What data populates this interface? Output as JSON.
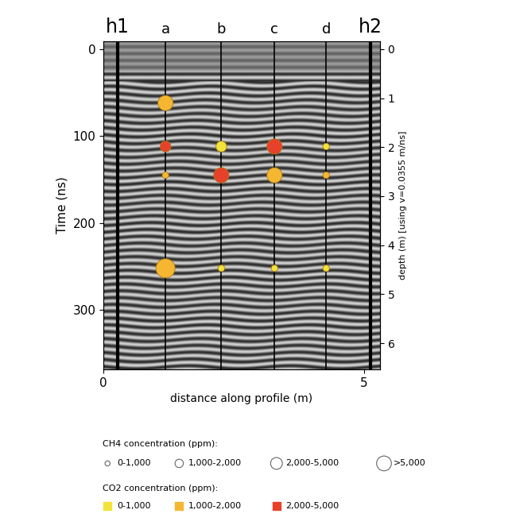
{
  "chart_data": {
    "type": "scatter",
    "xlabel": "distance along profile (m)",
    "ylabel": "Time (ns)",
    "y2label": "depth (m) [using v=0.0355 m/ns]",
    "xlim": [
      0,
      5.3
    ],
    "xticks": [
      0,
      5
    ],
    "ylim": [
      368,
      -9
    ],
    "yticks": [
      0,
      100,
      200,
      300
    ],
    "y2lim": [
      6.53,
      -0.16
    ],
    "y2ticks": [
      0,
      1,
      2,
      3,
      4,
      5,
      6
    ],
    "grid": false,
    "profile_lines": [
      {
        "label": "h1",
        "x": 0.27
      },
      {
        "label": "a",
        "x": 1.19
      },
      {
        "label": "b",
        "x": 2.26
      },
      {
        "label": "c",
        "x": 3.28
      },
      {
        "label": "d",
        "x": 4.27
      },
      {
        "label": "h2",
        "x": 5.12
      }
    ],
    "ch4_legend": {
      "title": "CH4 concentration (ppm):",
      "classes": [
        "0-1,000",
        "1,000-2,000",
        "2,000-5,000",
        ">5,000"
      ]
    },
    "co2_legend": {
      "title": "CO2 concentration (ppm):",
      "classes": [
        "0-1,000",
        "1,000-2,000",
        "2,000-5,000"
      ],
      "colors": [
        "#f2e33a",
        "#f5b731",
        "#e8412b"
      ]
    },
    "points": [
      {
        "x": 1.19,
        "time": 62,
        "ch4": "2,000-5,000",
        "co2": "1,000-2,000"
      },
      {
        "x": 1.19,
        "time": 112,
        "ch4": "1,000-2,000",
        "co2": "2,000-5,000"
      },
      {
        "x": 1.19,
        "time": 145,
        "ch4": "0-1,000",
        "co2": "1,000-2,000"
      },
      {
        "x": 1.19,
        "time": 252,
        "ch4": ">5,000",
        "co2": "1,000-2,000"
      },
      {
        "x": 2.26,
        "time": 112,
        "ch4": "1,000-2,000",
        "co2": "0-1,000"
      },
      {
        "x": 2.26,
        "time": 145,
        "ch4": "2,000-5,000",
        "co2": "2,000-5,000"
      },
      {
        "x": 2.26,
        "time": 252,
        "ch4": "0-1,000",
        "co2": "0-1,000"
      },
      {
        "x": 3.28,
        "time": 112,
        "ch4": "2,000-5,000",
        "co2": "2,000-5,000"
      },
      {
        "x": 3.28,
        "time": 145,
        "ch4": "2,000-5,000",
        "co2": "1,000-2,000"
      },
      {
        "x": 3.28,
        "time": 252,
        "ch4": "0-1,000",
        "co2": "0-1,000"
      },
      {
        "x": 4.27,
        "time": 112,
        "ch4": "0-1,000",
        "co2": "0-1,000"
      },
      {
        "x": 4.27,
        "time": 145,
        "ch4": "0-1,000",
        "co2": "1,000-2,000"
      },
      {
        "x": 4.27,
        "time": 252,
        "ch4": "0-1,000",
        "co2": "0-1,000"
      }
    ]
  }
}
